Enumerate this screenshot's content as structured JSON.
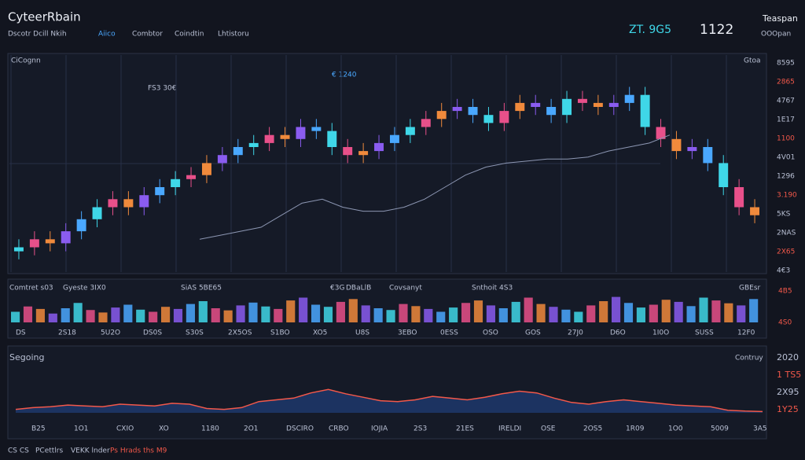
{
  "header": {
    "title": "CyteerRbain",
    "subtitle": "Dscotr  Dcill Nkih",
    "nav": [
      "Aiico",
      "Combtor",
      "Coindtin",
      "Lhtistoru"
    ],
    "price_label": "ZT. 9G5",
    "price": "1122",
    "account": "Teaspan",
    "account_sub": "OOOpan"
  },
  "main": {
    "label": "CiCognn",
    "corner": "Gtoa",
    "annotations": [
      "FS3 30€",
      "€ 1240"
    ],
    "right_labels": [
      "8595",
      "2865",
      "4767",
      "1E17",
      "1100",
      "4V01",
      "1296",
      "3.190",
      "5KS",
      "2NAS",
      "2X65",
      "4€3"
    ],
    "ylim": [
      0,
      100
    ],
    "palette": [
      "#3fd7e8",
      "#e8508a",
      "#f08a3c",
      "#8a5cf0",
      "#4aa8ff"
    ],
    "candles": {
      "open": [
        8,
        10,
        14,
        12,
        18,
        24,
        30,
        34,
        30,
        36,
        40,
        44,
        46,
        52,
        56,
        60,
        62,
        66,
        64,
        70,
        68,
        60,
        56,
        58,
        62,
        66,
        70,
        74,
        78,
        80,
        76,
        72,
        78,
        82,
        80,
        76,
        84,
        82,
        80,
        82,
        86,
        70,
        64,
        58,
        60,
        52,
        40,
        30
      ],
      "close": [
        10,
        14,
        12,
        18,
        24,
        30,
        34,
        30,
        36,
        40,
        44,
        46,
        52,
        56,
        60,
        62,
        66,
        64,
        70,
        68,
        60,
        56,
        58,
        62,
        66,
        70,
        74,
        78,
        80,
        76,
        72,
        78,
        82,
        80,
        76,
        84,
        82,
        80,
        82,
        86,
        70,
        64,
        58,
        60,
        52,
        40,
        30,
        26
      ],
      "high": [
        14,
        18,
        18,
        22,
        28,
        34,
        38,
        38,
        40,
        44,
        48,
        50,
        56,
        60,
        64,
        66,
        70,
        70,
        74,
        74,
        72,
        64,
        62,
        66,
        70,
        74,
        78,
        82,
        84,
        84,
        80,
        82,
        86,
        86,
        84,
        88,
        88,
        86,
        86,
        90,
        90,
        74,
        68,
        64,
        64,
        56,
        44,
        34
      ],
      "low": [
        4,
        6,
        8,
        8,
        14,
        20,
        26,
        26,
        26,
        32,
        36,
        40,
        42,
        48,
        52,
        56,
        58,
        60,
        60,
        64,
        56,
        52,
        52,
        54,
        58,
        62,
        66,
        70,
        74,
        72,
        68,
        68,
        74,
        76,
        72,
        72,
        78,
        76,
        76,
        78,
        66,
        60,
        54,
        54,
        48,
        36,
        26,
        22
      ]
    },
    "ma": [
      14,
      16,
      18,
      20,
      26,
      32,
      34,
      30,
      28,
      28,
      30,
      34,
      40,
      46,
      50,
      52,
      53,
      54,
      54,
      55,
      58,
      60,
      62,
      66
    ]
  },
  "volume": {
    "labels": [
      "Comtret s03",
      "Gyeste 3IX0",
      "SiAS 5BE65",
      "€3G",
      "DBaLlB",
      "Covsanyt",
      "Snthoit 4S3",
      "GBEsr"
    ],
    "x_labels": [
      "DS",
      "2S18",
      "5U2O",
      "DS0S",
      "S30S",
      "2X5OS",
      "S1BO",
      "XO5",
      "U8S",
      "3EBO",
      "0ESS",
      "OSO",
      "GOS",
      "27J0",
      "D6O",
      "1I0O",
      "SUSS",
      "12F0"
    ],
    "right_labels": [
      "4B5",
      "4S0"
    ],
    "ylim": [
      0,
      100
    ],
    "values": [
      30,
      45,
      38,
      25,
      40,
      55,
      35,
      28,
      42,
      50,
      36,
      30,
      44,
      38,
      52,
      60,
      40,
      34,
      48,
      56,
      45,
      38,
      62,
      70,
      50,
      44,
      58,
      66,
      48,
      40,
      35,
      52,
      46,
      38,
      30,
      42,
      55,
      62,
      48,
      40,
      58,
      70,
      52,
      44,
      36,
      30,
      48,
      60,
      72,
      55,
      42,
      50,
      64,
      58,
      46,
      70,
      62,
      54,
      48,
      66
    ]
  },
  "lower": {
    "label": "Segoing",
    "corner": "Contruy",
    "x_labels": [
      "B25",
      "1O1",
      "CXIO",
      "XO",
      "1180",
      "2O1",
      "DSCIRO",
      "CRBO",
      "IOJIA",
      "2S3",
      "21ES",
      "IRELDI",
      "OSE",
      "2OS5",
      "1R09",
      "1O0",
      "5009",
      "3A5"
    ],
    "right_labels": [
      "2020",
      "1 TS5",
      "2X95",
      "1Y25"
    ],
    "ylim": [
      0,
      100
    ],
    "values": [
      8,
      12,
      14,
      18,
      16,
      14,
      20,
      18,
      16,
      22,
      20,
      10,
      8,
      12,
      26,
      30,
      34,
      46,
      54,
      44,
      36,
      28,
      26,
      30,
      38,
      34,
      30,
      36,
      44,
      50,
      46,
      34,
      24,
      20,
      26,
      30,
      26,
      22,
      18,
      16,
      14,
      6,
      4,
      3
    ]
  },
  "footer": [
    "CS CS",
    "PCettlrs",
    "VEKK lnder",
    "Ps Hrads ths M9"
  ]
}
